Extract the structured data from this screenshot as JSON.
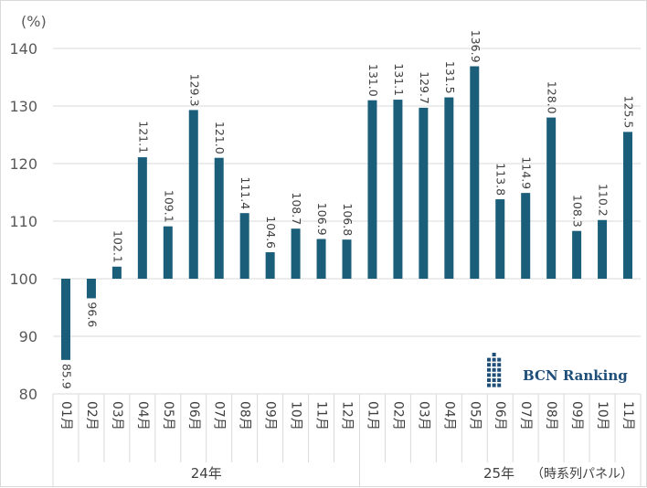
{
  "chart_data": {
    "type": "bar",
    "unit_label": "(%)",
    "baseline": 100,
    "ylim": [
      80,
      140
    ],
    "yticks": [
      80,
      90,
      100,
      110,
      120,
      130,
      140
    ],
    "categories": [
      "01月",
      "02月",
      "03月",
      "04月",
      "05月",
      "06月",
      "07月",
      "08月",
      "09月",
      "10月",
      "11月",
      "12月",
      "01月",
      "02月",
      "03月",
      "04月",
      "05月",
      "06月",
      "07月",
      "08月",
      "09月",
      "10月",
      "11月"
    ],
    "values": [
      85.9,
      96.6,
      102.1,
      121.1,
      109.1,
      129.3,
      121.0,
      111.4,
      104.6,
      108.7,
      106.9,
      106.8,
      131.0,
      131.1,
      129.7,
      131.5,
      136.9,
      113.8,
      114.9,
      128.0,
      108.3,
      110.2,
      125.5
    ],
    "value_labels": [
      "85.9",
      "96.6",
      "102.1",
      "121.1",
      "109.1",
      "129.3",
      "121.0",
      "111.4",
      "104.6",
      "108.7",
      "106.9",
      "106.8",
      "131.0",
      "131.1",
      "129.7",
      "131.5",
      "136.9",
      "113.8",
      "114.9",
      "128.0",
      "108.3",
      "110.2",
      "125.5"
    ],
    "groups": [
      {
        "label": "24年",
        "count": 12
      },
      {
        "label": "25年",
        "count": 11
      }
    ],
    "note": "（時系列パネル）",
    "bar_color": "#1b5e7a",
    "grid": true
  },
  "logo": {
    "text": "BCN Ranking",
    "color": "#1f4e79"
  }
}
